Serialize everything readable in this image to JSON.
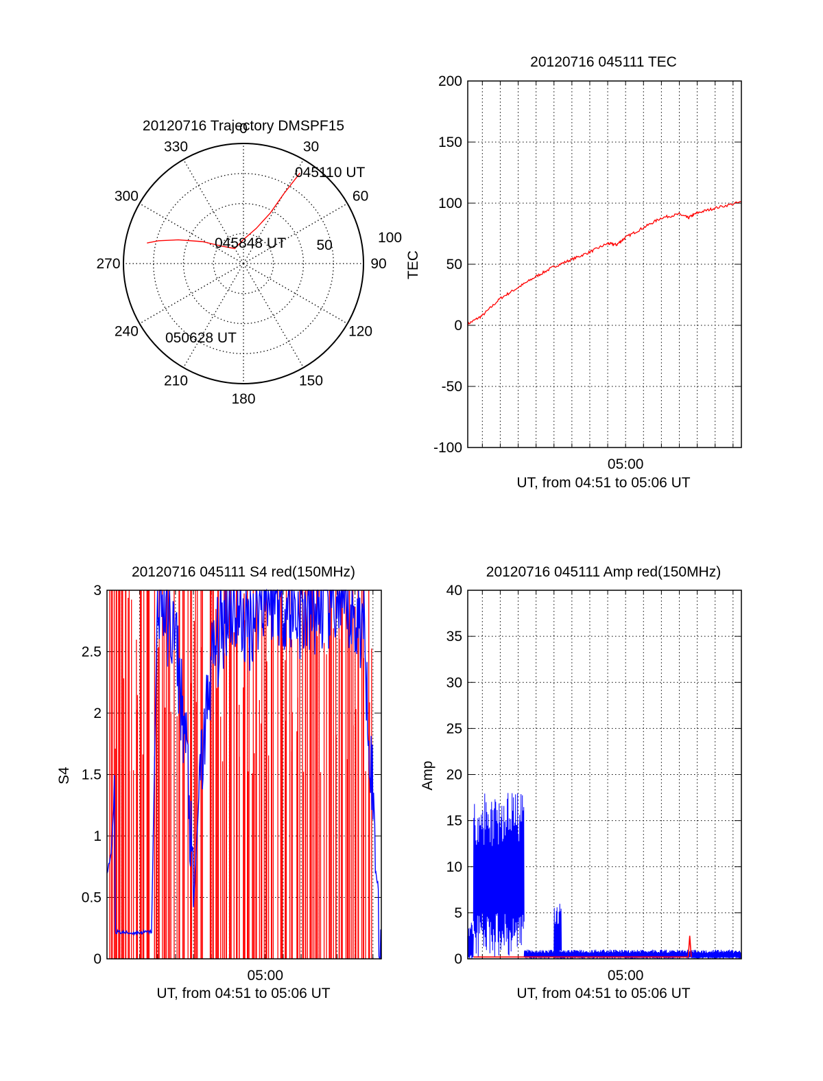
{
  "chart_data": [
    {
      "type": "polar",
      "title": "20120716 Trajectory DMSPF15",
      "azimuth_labels": [
        "0",
        "30",
        "60",
        "90",
        "120",
        "150",
        "180",
        "210",
        "240",
        "270",
        "300",
        "330"
      ],
      "radius_labels": [
        "50",
        "100"
      ],
      "rlim": [
        0,
        100
      ],
      "grid": true,
      "annotations": {
        "start": "045110 UT",
        "mid": "045848 UT",
        "end": "050628 UT"
      },
      "series": [
        {
          "color": "#ff0000",
          "points": [
            {
              "az": 32,
              "el": 10
            },
            {
              "az": 30,
              "el": 30
            },
            {
              "az": 28,
              "el": 47
            },
            {
              "az": 20,
              "el": 62
            },
            {
              "az": 0,
              "el": 72
            },
            {
              "az": -30,
              "el": 77
            },
            {
              "az": -50,
              "el": 70
            },
            {
              "az": -62,
              "el": 55
            },
            {
              "az": -70,
              "el": 38
            },
            {
              "az": -75,
              "el": 24
            },
            {
              "az": -78,
              "el": 16
            }
          ]
        }
      ]
    },
    {
      "type": "line",
      "title": "20120716 045111 TEC",
      "xlabel": "UT, from 04:51 to 05:06 UT",
      "ylabel": "TEC",
      "xlim": [
        "04:51:11",
        "05:06:28"
      ],
      "xtick_labels": [
        {
          "t": "05:00",
          "label": "05:00"
        }
      ],
      "ylim": [
        -100,
        200
      ],
      "ytick_labels": [
        "-100",
        "-50",
        "0",
        "50",
        "100",
        "150",
        "200"
      ],
      "grid": true,
      "series": [
        {
          "color": "#ff0000",
          "points": [
            {
              "t": "04:51:11",
              "v": 1
            },
            {
              "t": "04:52:00",
              "v": 8
            },
            {
              "t": "04:53:00",
              "v": 22
            },
            {
              "t": "04:54:00",
              "v": 31
            },
            {
              "t": "04:55:00",
              "v": 40
            },
            {
              "t": "04:56:00",
              "v": 48
            },
            {
              "t": "04:57:00",
              "v": 54
            },
            {
              "t": "04:58:00",
              "v": 60
            },
            {
              "t": "04:59:00",
              "v": 67
            },
            {
              "t": "04:59:30",
              "v": 66
            },
            {
              "t": "05:00:00",
              "v": 72
            },
            {
              "t": "05:01:00",
              "v": 80
            },
            {
              "t": "05:02:00",
              "v": 88
            },
            {
              "t": "05:03:00",
              "v": 91
            },
            {
              "t": "05:03:30",
              "v": 88
            },
            {
              "t": "05:04:00",
              "v": 92
            },
            {
              "t": "05:05:00",
              "v": 96
            },
            {
              "t": "05:06:28",
              "v": 101
            }
          ]
        }
      ]
    },
    {
      "type": "line",
      "title": "20120716 045111 S4 red(150MHz)",
      "xlabel": "UT, from 04:51 to 05:06 UT",
      "ylabel": "S4",
      "xlim": [
        "04:51:11",
        "05:06:28"
      ],
      "xtick_labels": [
        {
          "t": "05:00",
          "label": "05:00"
        }
      ],
      "ylim": [
        0,
        3
      ],
      "ytick_labels": [
        "0",
        "0.5",
        "1",
        "1.5",
        "2",
        "2.5",
        "3"
      ],
      "grid": true,
      "series": [
        {
          "color": "#ff0000",
          "name": "",
          "spikes": [
            "04:51:20",
            "04:51:35",
            "04:51:50",
            "04:52:00",
            "04:52:20",
            "04:52:35",
            "04:52:50",
            "04:53:10",
            "04:53:25",
            "04:53:40",
            "04:54:00",
            "04:54:20",
            "04:54:40",
            "04:55:00",
            "04:55:20",
            "04:55:40",
            "04:56:00",
            "04:56:20",
            "04:56:45",
            "04:57:00",
            "04:57:20",
            "04:57:40",
            "04:58:00",
            "04:58:20",
            "04:58:40",
            "04:59:00",
            "04:59:20",
            "04:59:40",
            "05:00:00",
            "05:00:20",
            "05:00:40",
            "05:01:00",
            "05:01:20",
            "05:01:40",
            "05:02:00",
            "05:02:20",
            "05:02:40",
            "05:03:00",
            "05:03:20",
            "05:03:40",
            "05:04:00",
            "05:04:20",
            "05:04:40",
            "05:05:00",
            "05:05:20",
            "05:05:40"
          ],
          "spike_top": 3
        },
        {
          "color": "#0000ff",
          "name": "",
          "points": [
            {
              "t": "04:51:11",
              "v": 0.7
            },
            {
              "t": "04:51:25",
              "v": 0.85
            },
            {
              "t": "04:51:35",
              "v": 1.3
            },
            {
              "t": "04:51:40",
              "v": 0.22
            },
            {
              "t": "04:52:30",
              "v": 0.21
            },
            {
              "t": "04:53:40",
              "v": 0.22
            },
            {
              "t": "04:54:00",
              "v": 3
            },
            {
              "t": "04:55:00",
              "v": 2.6
            },
            {
              "t": "04:55:40",
              "v": 1.6
            },
            {
              "t": "04:56:00",
              "v": 0.42
            },
            {
              "t": "04:56:20",
              "v": 1.4
            },
            {
              "t": "04:57:00",
              "v": 2.4
            },
            {
              "t": "04:58:00",
              "v": 2.9
            },
            {
              "t": "04:59:00",
              "v": 2.7
            },
            {
              "t": "05:00:00",
              "v": 3
            },
            {
              "t": "05:02:00",
              "v": 2.8
            },
            {
              "t": "05:04:00",
              "v": 2.9
            },
            {
              "t": "05:05:30",
              "v": 2.7
            },
            {
              "t": "05:06:28",
              "v": 0
            }
          ]
        }
      ]
    },
    {
      "type": "line",
      "title": "20120716 045111 Amp red(150MHz)",
      "xlabel": "UT, from 04:51 to 05:06 UT",
      "ylabel": "Amp",
      "xlim": [
        "04:51:11",
        "05:06:28"
      ],
      "xtick_labels": [
        {
          "t": "05:00",
          "label": "05:00"
        }
      ],
      "ylim": [
        0,
        40
      ],
      "ytick_labels": [
        "0",
        "5",
        "10",
        "15",
        "20",
        "25",
        "30",
        "35",
        "40"
      ],
      "grid": true,
      "series": [
        {
          "color": "#0000ff",
          "name": "",
          "bands": [
            {
              "from": "04:51:11",
              "to": "04:51:30",
              "low": 0.5,
              "high": 4
            },
            {
              "from": "04:51:30",
              "to": "04:54:20",
              "low": 5,
              "high": 18
            },
            {
              "from": "04:56:00",
              "to": "04:56:25",
              "low": 1,
              "high": 6
            },
            {
              "from": "04:54:20",
              "to": "05:06:28",
              "low": 0.2,
              "high": 1
            }
          ]
        },
        {
          "color": "#ff0000",
          "name": "",
          "points": [
            {
              "t": "04:51:30",
              "v": 0.2
            },
            {
              "t": "04:54:20",
              "v": 0.2
            },
            {
              "t": "05:03:30",
              "v": 0.2
            },
            {
              "t": "05:03:35",
              "v": 2.5
            },
            {
              "t": "05:03:40",
              "v": 0.2
            }
          ]
        }
      ]
    }
  ]
}
